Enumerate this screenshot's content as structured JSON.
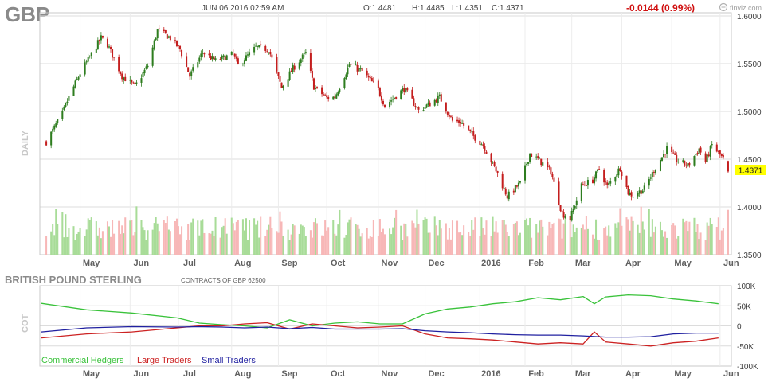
{
  "header": {
    "symbol": "GBP",
    "datetime": "JUN 06 2016 02:59 AM",
    "open": "O:1.4481",
    "high": "H:1.4485",
    "low": "L:1.4351",
    "close": "C:1.4371",
    "change": "-0.0144 (0.99%)",
    "brand": "finviz.com"
  },
  "colors": {
    "up": "#2e7d1f",
    "down": "#c41e1e",
    "vol_up": "#a8dc98",
    "vol_down": "#f7b7b7",
    "grid": "#dcdcdc",
    "commercial": "#39c23a",
    "large": "#cc2222",
    "small": "#2020a0",
    "last_price_bg": "#ffff00",
    "change": "#d01010",
    "period_label": "#c8c8c8"
  },
  "chart_data": [
    {
      "type": "candlestick",
      "panel": "price",
      "period_label": "DAILY",
      "ylim": [
        1.35,
        1.6
      ],
      "y_ticks": [
        "1.6000",
        "1.5500",
        "1.5000",
        "1.4500",
        "1.4000",
        "1.3500"
      ],
      "x_ticks": [
        "May",
        "Jun",
        "Jul",
        "Aug",
        "Sep",
        "Oct",
        "Nov",
        "Dec",
        "2016",
        "Feb",
        "Mar",
        "Apr",
        "May",
        "Jun"
      ],
      "last_price": "1.4371",
      "close_anchors": [
        [
          "2015-04-10",
          1.468
        ],
        [
          "2015-04-20",
          1.498
        ],
        [
          "2015-04-24",
          1.515
        ],
        [
          "2015-05-01",
          1.54
        ],
        [
          "2015-05-07",
          1.557
        ],
        [
          "2015-05-14",
          1.577
        ],
        [
          "2015-05-18",
          1.57
        ],
        [
          "2015-05-27",
          1.537
        ],
        [
          "2015-06-04",
          1.526
        ],
        [
          "2015-06-12",
          1.548
        ],
        [
          "2015-06-18",
          1.585
        ],
        [
          "2015-06-26",
          1.577
        ],
        [
          "2015-07-02",
          1.565
        ],
        [
          "2015-07-08",
          1.537
        ],
        [
          "2015-07-16",
          1.562
        ],
        [
          "2015-07-24",
          1.553
        ],
        [
          "2015-08-04",
          1.56
        ],
        [
          "2015-08-07",
          1.548
        ],
        [
          "2015-08-18",
          1.567
        ],
        [
          "2015-08-26",
          1.565
        ],
        [
          "2015-09-03",
          1.525
        ],
        [
          "2015-09-10",
          1.545
        ],
        [
          "2015-09-18",
          1.561
        ],
        [
          "2015-09-23",
          1.526
        ],
        [
          "2015-10-01",
          1.514
        ],
        [
          "2015-10-06",
          1.515
        ],
        [
          "2015-10-15",
          1.549
        ],
        [
          "2015-10-23",
          1.542
        ],
        [
          "2015-11-02",
          1.523
        ],
        [
          "2015-11-06",
          1.506
        ],
        [
          "2015-11-18",
          1.524
        ],
        [
          "2015-11-27",
          1.501
        ],
        [
          "2015-12-04",
          1.508
        ],
        [
          "2015-12-10",
          1.515
        ],
        [
          "2015-12-18",
          1.49
        ],
        [
          "2015-12-23",
          1.489
        ],
        [
          "2015-12-31",
          1.474
        ],
        [
          "2016-01-06",
          1.465
        ],
        [
          "2016-01-14",
          1.438
        ],
        [
          "2016-01-21",
          1.411
        ],
        [
          "2016-01-29",
          1.425
        ],
        [
          "2016-02-04",
          1.456
        ],
        [
          "2016-02-11",
          1.447
        ],
        [
          "2016-02-17",
          1.437
        ],
        [
          "2016-02-24",
          1.393
        ],
        [
          "2016-02-29",
          1.388
        ],
        [
          "2016-03-07",
          1.422
        ],
        [
          "2016-03-14",
          1.428
        ],
        [
          "2016-03-18",
          1.44
        ],
        [
          "2016-03-23",
          1.421
        ],
        [
          "2016-03-31",
          1.441
        ],
        [
          "2016-04-05",
          1.415
        ],
        [
          "2016-04-08",
          1.412
        ],
        [
          "2016-04-15",
          1.419
        ],
        [
          "2016-04-21",
          1.438
        ],
        [
          "2016-04-29",
          1.461
        ],
        [
          "2016-05-05",
          1.449
        ],
        [
          "2016-05-12",
          1.443
        ],
        [
          "2016-05-19",
          1.461
        ],
        [
          "2016-05-23",
          1.447
        ],
        [
          "2016-05-27",
          1.465
        ],
        [
          "2016-06-03",
          1.45
        ],
        [
          "2016-06-06",
          1.4371
        ]
      ],
      "volume_note": "daily volume bars at the bottom of the price panel, unlabeled"
    },
    {
      "type": "line",
      "panel": "cot",
      "title": "BRITISH POUND STERLING",
      "subtitle": "CONTRACTS OF GBP 62500",
      "period_label": "COT",
      "ylim": [
        -100000,
        100000
      ],
      "y_ticks": [
        "100K",
        "50K",
        "0",
        "-50K",
        "-100K"
      ],
      "x_ticks": [
        "May",
        "Jun",
        "Jul",
        "Aug",
        "Sep",
        "Oct",
        "Nov",
        "Dec",
        "2016",
        "Feb",
        "Mar",
        "Apr",
        "May",
        "Jun"
      ],
      "series": [
        {
          "name": "Commercial Hedgers",
          "points": [
            [
              "2015-04-07",
              56000
            ],
            [
              "2015-05-05",
              40000
            ],
            [
              "2015-06-02",
              32000
            ],
            [
              "2015-06-30",
              20000
            ],
            [
              "2015-07-14",
              7000
            ],
            [
              "2015-07-28",
              3000
            ],
            [
              "2015-08-11",
              0
            ],
            [
              "2015-08-25",
              -5000
            ],
            [
              "2015-09-08",
              15000
            ],
            [
              "2015-09-22",
              0
            ],
            [
              "2015-10-06",
              7000
            ],
            [
              "2015-10-20",
              10000
            ],
            [
              "2015-11-03",
              5000
            ],
            [
              "2015-11-17",
              5000
            ],
            [
              "2015-12-01",
              30000
            ],
            [
              "2015-12-15",
              42000
            ],
            [
              "2015-12-29",
              47000
            ],
            [
              "2016-01-12",
              55000
            ],
            [
              "2016-01-26",
              60000
            ],
            [
              "2016-02-09",
              70000
            ],
            [
              "2016-02-23",
              65000
            ],
            [
              "2016-03-08",
              73000
            ],
            [
              "2016-03-15",
              55000
            ],
            [
              "2016-03-22",
              72000
            ],
            [
              "2016-04-05",
              77000
            ],
            [
              "2016-04-19",
              75000
            ],
            [
              "2016-05-03",
              67000
            ],
            [
              "2016-05-17",
              62000
            ],
            [
              "2016-05-31",
              55000
            ]
          ]
        },
        {
          "name": "Large Traders",
          "points": [
            [
              "2015-04-07",
              -30000
            ],
            [
              "2015-05-05",
              -20000
            ],
            [
              "2015-06-02",
              -15000
            ],
            [
              "2015-06-30",
              -5000
            ],
            [
              "2015-07-14",
              0
            ],
            [
              "2015-07-28",
              0
            ],
            [
              "2015-08-11",
              5000
            ],
            [
              "2015-08-25",
              8000
            ],
            [
              "2015-09-08",
              -8000
            ],
            [
              "2015-09-22",
              5000
            ],
            [
              "2015-10-06",
              0
            ],
            [
              "2015-10-20",
              -5000
            ],
            [
              "2015-11-03",
              -3000
            ],
            [
              "2015-11-17",
              0
            ],
            [
              "2015-12-01",
              -20000
            ],
            [
              "2015-12-15",
              -30000
            ],
            [
              "2015-12-29",
              -32000
            ],
            [
              "2016-01-12",
              -35000
            ],
            [
              "2016-01-26",
              -40000
            ],
            [
              "2016-02-09",
              -45000
            ],
            [
              "2016-02-23",
              -42000
            ],
            [
              "2016-03-08",
              -45000
            ],
            [
              "2016-03-15",
              -15000
            ],
            [
              "2016-03-22",
              -40000
            ],
            [
              "2016-04-05",
              -45000
            ],
            [
              "2016-04-19",
              -50000
            ],
            [
              "2016-05-03",
              -42000
            ],
            [
              "2016-05-17",
              -38000
            ],
            [
              "2016-05-31",
              -30000
            ]
          ]
        },
        {
          "name": "Small Traders",
          "points": [
            [
              "2015-04-07",
              -15000
            ],
            [
              "2015-05-05",
              -5000
            ],
            [
              "2015-06-02",
              -2000
            ],
            [
              "2015-06-30",
              -3000
            ],
            [
              "2015-07-14",
              -2000
            ],
            [
              "2015-07-28",
              -3000
            ],
            [
              "2015-08-11",
              -5000
            ],
            [
              "2015-08-25",
              -3000
            ],
            [
              "2015-09-08",
              -7000
            ],
            [
              "2015-09-22",
              -4000
            ],
            [
              "2015-10-06",
              -8000
            ],
            [
              "2015-10-20",
              -8000
            ],
            [
              "2015-11-03",
              -8000
            ],
            [
              "2015-11-17",
              -7000
            ],
            [
              "2015-12-01",
              -12000
            ],
            [
              "2015-12-15",
              -15000
            ],
            [
              "2015-12-29",
              -17000
            ],
            [
              "2016-01-12",
              -20000
            ],
            [
              "2016-01-26",
              -22000
            ],
            [
              "2016-02-09",
              -23000
            ],
            [
              "2016-02-23",
              -23000
            ],
            [
              "2016-03-08",
              -25000
            ],
            [
              "2016-03-22",
              -28000
            ],
            [
              "2016-04-05",
              -28000
            ],
            [
              "2016-04-19",
              -27000
            ],
            [
              "2016-05-03",
              -20000
            ],
            [
              "2016-05-17",
              -18000
            ],
            [
              "2016-05-31",
              -18000
            ]
          ]
        }
      ]
    }
  ]
}
